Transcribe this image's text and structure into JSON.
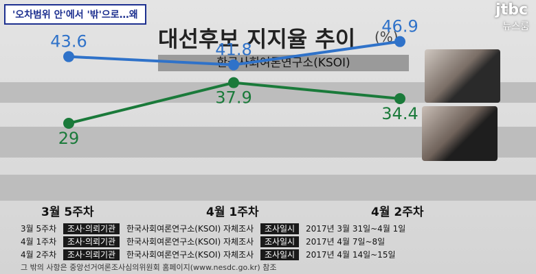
{
  "headline": "'오차범위 안'에서 '밖'으로…왜",
  "logo": {
    "brand": "jtbc",
    "sub": "뉴스룸"
  },
  "title": "대선후보 지지율 추이",
  "unit": "(%)",
  "source": "한국사회여론연구소(KSOI)",
  "chart_data": {
    "type": "line",
    "categories": [
      "3월 5주차",
      "4월 1주차",
      "4월 2주차"
    ],
    "series": [
      {
        "values": [
          43.6,
          41.8,
          46.9
        ],
        "color": "#2f72c9"
      },
      {
        "values": [
          29,
          37.9,
          34.4
        ],
        "color": "#1a7a3a"
      }
    ],
    "ylim": [
      20,
      50
    ],
    "grid": false
  },
  "survey": [
    {
      "week": "3월 5주차",
      "org_tag": "조사·의뢰기관",
      "org": "한국사회여론연구소(KSOI) 자체조사",
      "date_tag": "조사일시",
      "date": "2017년 3월 31일~4월 1일"
    },
    {
      "week": "4월 1주차",
      "org_tag": "조사·의뢰기관",
      "org": "한국사회여론연구소(KSOI) 자체조사",
      "date_tag": "조사일시",
      "date": "2017년 4월 7일~8일"
    },
    {
      "week": "4월 2주차",
      "org_tag": "조사·의뢰기관",
      "org": "한국사회여론연구소(KSOI) 자체조사",
      "date_tag": "조사일시",
      "date": "2017년 4월 14일~15일"
    }
  ],
  "note": "그 밖의 사항은 중앙선거여론조사심의위원회 홈페이지(www.nesdc.go.kr) 참조"
}
